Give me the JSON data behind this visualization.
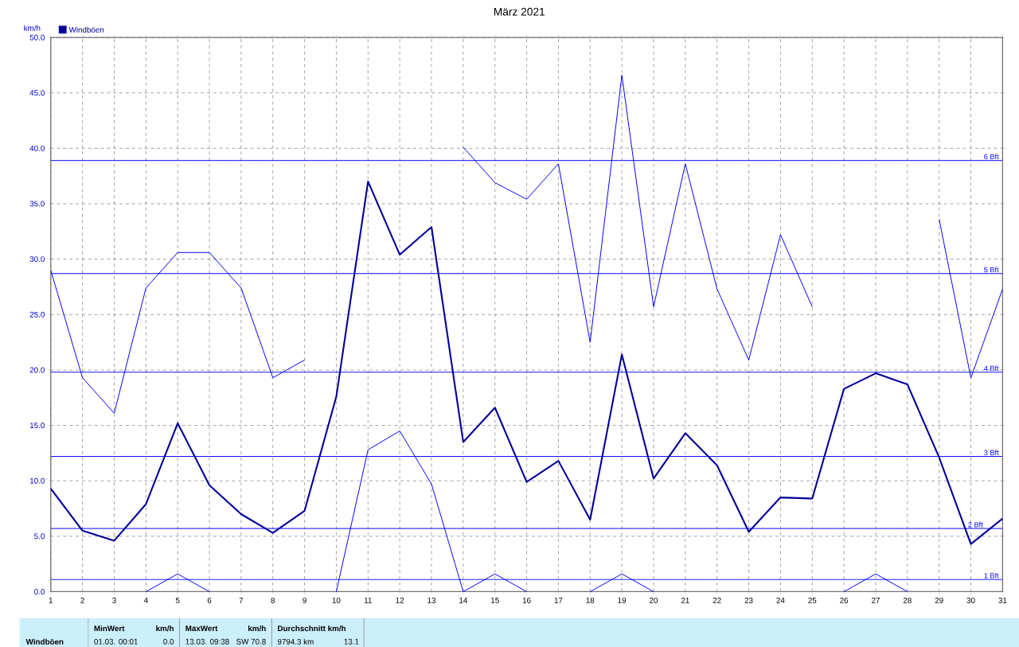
{
  "chart_data": {
    "type": "line",
    "title": "März 2021",
    "ylabel": "km/h",
    "x": [
      1,
      2,
      3,
      4,
      5,
      6,
      7,
      8,
      9,
      10,
      11,
      12,
      13,
      14,
      15,
      16,
      17,
      18,
      19,
      20,
      21,
      22,
      23,
      24,
      25,
      26,
      27,
      28,
      29,
      30,
      31
    ],
    "xlim": [
      1,
      31
    ],
    "xticks": [
      1,
      2,
      3,
      4,
      5,
      6,
      7,
      8,
      9,
      10,
      11,
      12,
      13,
      14,
      15,
      16,
      17,
      18,
      19,
      20,
      21,
      22,
      23,
      24,
      25,
      26,
      27,
      28,
      29,
      30,
      31
    ],
    "ylim": [
      0,
      50
    ],
    "yticks": [
      {
        "value": 0,
        "label": "0.0"
      },
      {
        "value": 5,
        "label": "5.0"
      },
      {
        "value": 10,
        "label": "10.0"
      },
      {
        "value": 15,
        "label": "15.0"
      },
      {
        "value": 20,
        "label": "20.0"
      },
      {
        "value": 25,
        "label": "25.0"
      },
      {
        "value": 30,
        "label": "30.0"
      },
      {
        "value": 35,
        "label": "35.0"
      },
      {
        "value": 40,
        "label": "40.0"
      },
      {
        "value": 45,
        "label": "45.0"
      },
      {
        "value": 50,
        "label": "50.0"
      }
    ],
    "series": [
      {
        "color": "#0000ff",
        "values": [
          29.0,
          19.3,
          16.1,
          27.4,
          30.6,
          30.6,
          27.4,
          19.3,
          20.9,
          null,
          null,
          null,
          null,
          40.1,
          36.9,
          35.4,
          38.6,
          22.5,
          46.6,
          25.7,
          38.6,
          27.3,
          20.9,
          32.2,
          25.7,
          null,
          null,
          null,
          33.6,
          19.3,
          27.3
        ]
      },
      {
        "name": "Windböen",
        "color": "#000099",
        "values": [
          9.3,
          5.5,
          4.6,
          7.9,
          15.2,
          9.6,
          7.0,
          5.3,
          7.3,
          17.6,
          37.0,
          30.4,
          32.9,
          13.5,
          16.6,
          9.9,
          11.8,
          6.5,
          21.4,
          10.2,
          14.3,
          11.4,
          5.4,
          8.5,
          8.4,
          18.3,
          19.7,
          18.7,
          12.1,
          4.3,
          6.6
        ]
      },
      {
        "color": "#0000ff",
        "values": [
          null,
          null,
          null,
          0,
          1.6,
          0,
          null,
          null,
          null,
          0,
          12.8,
          14.5,
          9.7,
          0,
          1.6,
          0,
          null,
          0,
          1.6,
          0,
          null,
          null,
          null,
          null,
          null,
          0,
          1.6,
          0,
          null,
          null,
          null
        ]
      }
    ],
    "ref_lines": [
      {
        "axis": "y",
        "value": 38.9,
        "label": "6 Bft",
        "color": "#0000ff"
      },
      {
        "axis": "y",
        "value": 28.7,
        "label": "5 Bft",
        "color": "#0000ff"
      },
      {
        "axis": "y",
        "value": 19.8,
        "label": "4 Bft",
        "color": "#0000ff"
      },
      {
        "axis": "y",
        "value": 12.2,
        "label": "3 Bft",
        "color": "#0000ff"
      },
      {
        "axis": "y",
        "value": 5.7,
        "label": "2 Bft",
        "color": "#0000ff"
      },
      {
        "axis": "y",
        "value": 1.1,
        "label": "1 Bft",
        "color": "#0000ff"
      }
    ],
    "annotations": [
      "Windböen",
      "MinWert",
      "km/h",
      "01.03.  00:01",
      "0.0",
      "MaxWert",
      "km/h",
      "13.03.  09:38",
      "SW 70.8",
      "Durchschnitt km/h",
      "9794.3 km",
      "13.1"
    ],
    "grid": true,
    "legend": "top left",
    "marker": "none",
    "line_style": "solid"
  }
}
